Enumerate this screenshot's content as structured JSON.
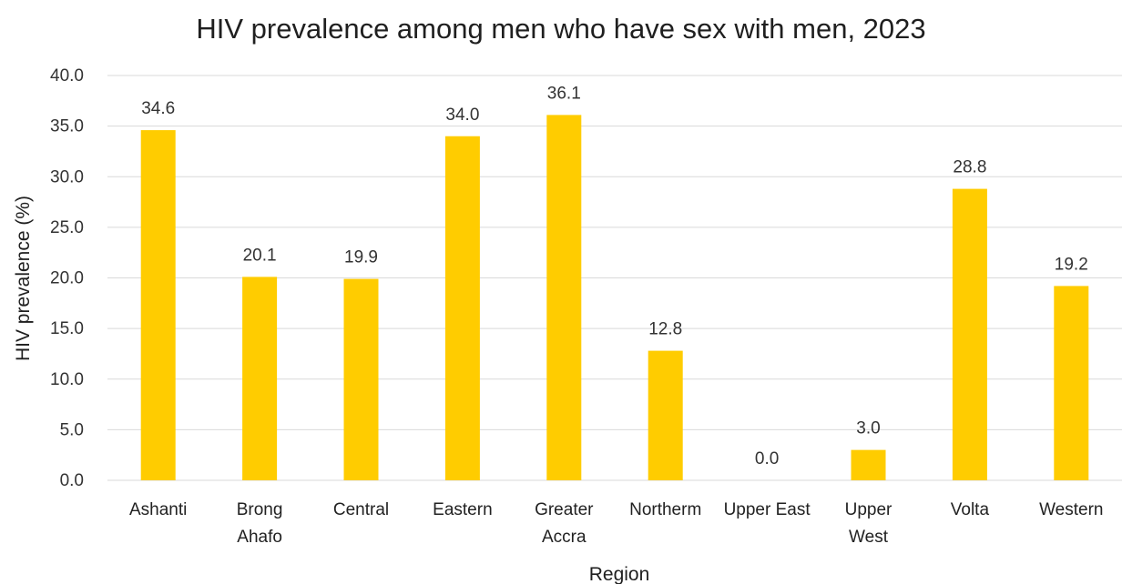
{
  "chart_data": {
    "type": "bar",
    "title": "HIV prevalence among men who have sex with men, 2023",
    "xlabel": "Region",
    "ylabel": "HIV prevalence (%)",
    "ylim": [
      0,
      40
    ],
    "yticks": [
      "0.0",
      "5.0",
      "10.0",
      "15.0",
      "20.0",
      "25.0",
      "30.0",
      "35.0",
      "40.0"
    ],
    "grid": true,
    "legend": "none",
    "bar_color": "#FFCC00",
    "categories": [
      [
        "Ashanti"
      ],
      [
        "Brong",
        "Ahafo"
      ],
      [
        "Central"
      ],
      [
        "Eastern"
      ],
      [
        "Greater",
        "Accra"
      ],
      [
        "Northerm"
      ],
      [
        "Upper East"
      ],
      [
        "Upper",
        "West"
      ],
      [
        "Volta"
      ],
      [
        "Western"
      ]
    ],
    "values": [
      34.6,
      20.1,
      19.9,
      34.0,
      36.1,
      12.8,
      0.0,
      3.0,
      28.8,
      19.2
    ],
    "data_labels": [
      "34.6",
      "20.1",
      "19.9",
      "34.0",
      "36.1",
      "12.8",
      "0.0",
      "3.0",
      "28.8",
      "19.2"
    ]
  }
}
